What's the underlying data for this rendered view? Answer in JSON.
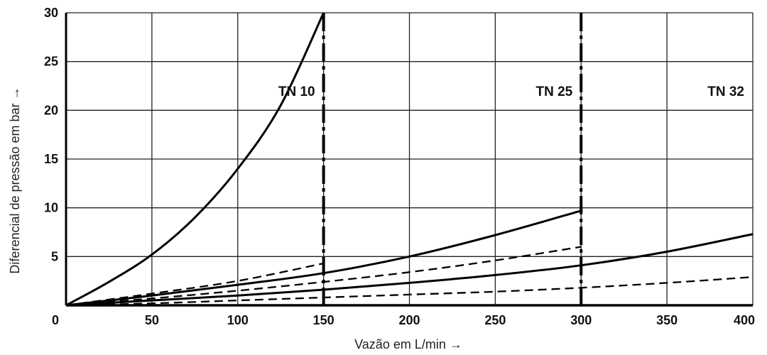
{
  "chart_data": {
    "type": "line",
    "xlabel": "Vazão em L/min →",
    "ylabel": "Diferencial de pressão em bar →",
    "xlim": [
      0,
      400
    ],
    "ylim": [
      0,
      30
    ],
    "x_ticks": [
      "0",
      "50",
      "100",
      "150",
      "200",
      "250",
      "300",
      "350",
      "400"
    ],
    "y_ticks": [
      "5",
      "10",
      "15",
      "20",
      "25",
      "30"
    ],
    "grid": true,
    "size_limits": [
      {
        "label": "TN 10",
        "x": 150
      },
      {
        "label": "TN 25",
        "x": 300
      },
      {
        "label": "TN 32",
        "x": 400
      }
    ],
    "series": [
      {
        "style": "solid",
        "x": [
          0,
          25,
          50,
          75,
          100,
          125,
          150
        ],
        "y": [
          0,
          2.4,
          5.2,
          9.0,
          14.0,
          20.5,
          30.0
        ]
      },
      {
        "style": "dashed",
        "x": [
          0,
          50,
          100,
          150
        ],
        "y": [
          0,
          1.2,
          2.5,
          4.3
        ]
      },
      {
        "style": "solid",
        "x": [
          0,
          50,
          100,
          150,
          200,
          250,
          300
        ],
        "y": [
          0,
          1.0,
          2.1,
          3.3,
          5.0,
          7.2,
          9.7
        ]
      },
      {
        "style": "dashed",
        "x": [
          0,
          50,
          100,
          150,
          200,
          250,
          300
        ],
        "y": [
          0,
          0.7,
          1.5,
          2.4,
          3.4,
          4.6,
          6.0
        ]
      },
      {
        "style": "solid",
        "x": [
          0,
          50,
          100,
          150,
          200,
          250,
          300,
          350,
          400
        ],
        "y": [
          0,
          0.5,
          1.0,
          1.6,
          2.3,
          3.1,
          4.1,
          5.5,
          7.3
        ]
      },
      {
        "style": "dashed",
        "x": [
          0,
          50,
          100,
          150,
          200,
          250,
          300,
          350,
          400
        ],
        "y": [
          0,
          0.2,
          0.5,
          0.8,
          1.1,
          1.4,
          1.8,
          2.3,
          2.9
        ]
      }
    ]
  }
}
